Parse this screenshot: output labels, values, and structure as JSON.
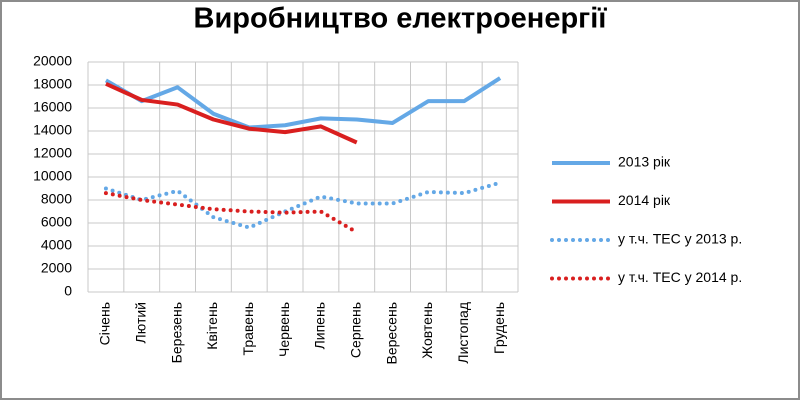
{
  "chart_data": {
    "type": "line",
    "title": "Виробництво електроенергії",
    "categories": [
      "Січень",
      "Лютий",
      "Березень",
      "Квітень",
      "Травень",
      "Червень",
      "Липень",
      "Серпень",
      "Вересень",
      "Жовтень",
      "Листопад",
      "Грудень"
    ],
    "series": [
      {
        "name": "2013 рік",
        "color": "#64a8e6",
        "line_style": "solid",
        "values": [
          18400,
          16600,
          17800,
          15500,
          14300,
          14500,
          15100,
          15000,
          14700,
          16600,
          16600,
          18600
        ]
      },
      {
        "name": "2014 рік",
        "color": "#d91f1f",
        "line_style": "solid",
        "values": [
          18100,
          16700,
          16300,
          15000,
          14200,
          13900,
          14400,
          13000,
          null,
          null,
          null,
          null
        ]
      },
      {
        "name": "у т.ч. ТЕС у 2013 р.",
        "color": "#64a8e6",
        "line_style": "dotted",
        "values": [
          9000,
          8000,
          8800,
          6500,
          5600,
          7000,
          8300,
          7700,
          7700,
          8700,
          8600,
          9500
        ]
      },
      {
        "name": "у т.ч. ТЕС у 2014 р.",
        "color": "#d91f1f",
        "line_style": "dotted",
        "values": [
          8600,
          8000,
          7600,
          7200,
          7000,
          6900,
          7000,
          5200,
          null,
          null,
          null,
          null
        ]
      }
    ],
    "ylim": [
      0,
      20000
    ],
    "yticks": [
      0,
      2000,
      4000,
      6000,
      8000,
      10000,
      12000,
      14000,
      16000,
      18000,
      20000
    ],
    "grid": true,
    "legend": "right"
  }
}
